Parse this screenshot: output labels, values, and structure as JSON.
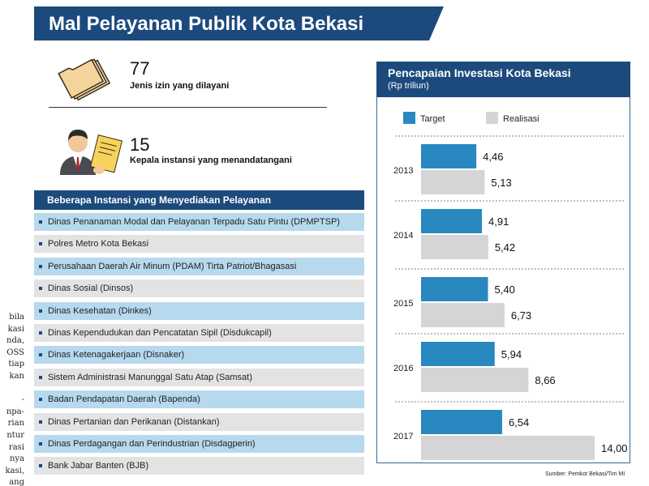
{
  "title": "Mal Pelayanan Publik Kota Bekasi",
  "stats": [
    {
      "icon": "folder-icon",
      "number": "77",
      "label": "Jenis izin yang dilayani"
    },
    {
      "icon": "official-signing-icon",
      "number": "15",
      "label": "Kepala instansi yang menandatangani"
    }
  ],
  "agencies": {
    "header": "Beberapa Instansi yang Menyediakan Pelayanan",
    "items": [
      "Dinas Penanaman Modal dan Pelayanan Terpadu Satu Pintu (DPMPTSP)",
      "Polres Metro Kota Bekasi",
      "Perusahaan Daerah Air Minum (PDAM) Tirta Patriot/Bhagasasi",
      "Dinas Sosial (Dinsos)",
      "Dinas Kesehatan (Dinkes)",
      "Dinas Kependudukan dan Pencatatan Sipil (Disdukcapil)",
      "Dinas Ketenagakerjaan (Disnaker)",
      "Sistem Administrasi Manunggal Satu Atap (Samsat)",
      "Badan Pendapatan Daerah (Bapenda)",
      "Dinas Pertanian dan Perikanan (Distankan)",
      "Dinas Perdagangan dan Perindustrian (Disdagperin)",
      "Bank Jabar Banten (BJB)"
    ]
  },
  "side_text": [
    "bila",
    "kasi",
    "nda,",
    "OSS",
    "tiap",
    "kan",
    "",
    "-",
    "npa-",
    "rian",
    "ntur",
    "rasi",
    "nya",
    "kasi,",
    "ang"
  ],
  "chart_data": {
    "type": "bar",
    "orientation": "horizontal",
    "title": "Pencapaian Investasi Kota Bekasi",
    "unit": "(Rp triliun)",
    "categories": [
      "2013",
      "2014",
      "2015",
      "2016",
      "2017"
    ],
    "series": [
      {
        "name": "Target",
        "color": "#2a88c0",
        "values": [
          4.46,
          4.91,
          5.4,
          5.94,
          6.54
        ],
        "labels": [
          "4,46",
          "4,91",
          "5,40",
          "5,94",
          "6,54"
        ]
      },
      {
        "name": "Realisasi",
        "color": "#d5d5d7",
        "values": [
          5.13,
          5.42,
          6.73,
          8.66,
          14.0
        ],
        "labels": [
          "5,13",
          "5,42",
          "6,73",
          "8,66",
          "14,00"
        ]
      }
    ],
    "legend": "top",
    "grid": false
  },
  "source": "Sumber: Pemkot Bekasi/Tim MI",
  "colors": {
    "navy": "#1c4a7d",
    "row_blue": "#b7d9ee",
    "row_gray": "#e3e3e3"
  }
}
